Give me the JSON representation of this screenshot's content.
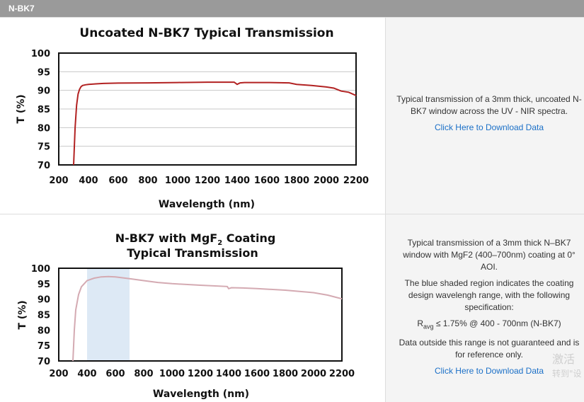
{
  "header": {
    "title": "N-BK7"
  },
  "chart_data": [
    {
      "type": "line",
      "title": "Uncoated N-BK7 Typical Transmission",
      "xlabel": "Wavelength (nm)",
      "ylabel": "T (%)",
      "xlim": [
        200,
        2200
      ],
      "ylim": [
        70,
        100
      ],
      "xticks": [
        "200",
        "400",
        "600",
        "800",
        "1000",
        "1200",
        "1400",
        "1600",
        "1800",
        "2000",
        "2200"
      ],
      "yticks": [
        "100",
        "95",
        "90",
        "85",
        "80",
        "75",
        "70"
      ],
      "grid": true,
      "line_color": "#b22222",
      "series": [
        {
          "x": [
            300,
            310,
            320,
            330,
            340,
            350,
            360,
            380,
            400,
            450,
            500,
            600,
            800,
            1000,
            1200,
            1380,
            1400,
            1420,
            1450,
            1600,
            1750,
            1800,
            1850,
            1900,
            2000,
            2050,
            2100,
            2150,
            2200
          ],
          "y": [
            70,
            80,
            86,
            89,
            90.3,
            91,
            91.3,
            91.5,
            91.6,
            91.75,
            91.85,
            91.95,
            92.0,
            92.1,
            92.2,
            92.2,
            91.6,
            92.0,
            92.1,
            92.1,
            92.0,
            91.6,
            91.45,
            91.3,
            90.9,
            90.6,
            89.8,
            89.5,
            88.6
          ]
        }
      ]
    },
    {
      "type": "line",
      "title_line1": "N-BK7 with MgF",
      "title_sub": "2",
      "title_line1_end": " Coating",
      "title_line2": "Typical Transmission",
      "xlabel": "Wavelength (nm)",
      "ylabel": "T (%)",
      "xlim": [
        200,
        2200
      ],
      "ylim": [
        70,
        100
      ],
      "xticks": [
        "200",
        "400",
        "600",
        "800",
        "1000",
        "1200",
        "1400",
        "1600",
        "1800",
        "2000",
        "2200"
      ],
      "yticks": [
        "100",
        "95",
        "90",
        "85",
        "80",
        "75",
        "70"
      ],
      "grid": false,
      "shaded_range": [
        400,
        700
      ],
      "shade_color": "#dde9f5",
      "line_color": "#d4aab2",
      "series": [
        {
          "x": [
            300,
            310,
            320,
            340,
            360,
            400,
            450,
            500,
            550,
            600,
            700,
            800,
            900,
            1000,
            1200,
            1390,
            1400,
            1420,
            1500,
            1600,
            1800,
            2000,
            2100,
            2150,
            2200
          ],
          "y": [
            70,
            80,
            86.5,
            91.5,
            94,
            96,
            96.8,
            97.2,
            97.3,
            97.2,
            96.6,
            96,
            95.4,
            95,
            94.5,
            94.1,
            93.4,
            93.7,
            93.6,
            93.4,
            92.9,
            92.1,
            91.3,
            90.7,
            90.1
          ]
        }
      ]
    }
  ],
  "descriptions": {
    "uncoated": {
      "text": "Typical transmission of a 3mm thick, uncoated N-BK7 window across the UV - NIR spectra.",
      "link": "Click Here to Download Data"
    },
    "coated": {
      "p1": "Typical transmission of a 3mm thick N–BK7 window with MgF2 (400–700nm) coating at 0° AOI.",
      "p2": "The blue shaded region indicates the coating design wavelengh range, with the following specification:",
      "spec_r": "R",
      "spec_sub": "avg",
      "spec_rest": " ≤ 1.75% @ 400 - 700nm (N-BK7)",
      "p4": "Data outside this range is not guaranteed and is for reference only.",
      "link": "Click Here to Download Data"
    }
  },
  "watermark": {
    "line1": "激活",
    "line2": "转到\"设"
  }
}
